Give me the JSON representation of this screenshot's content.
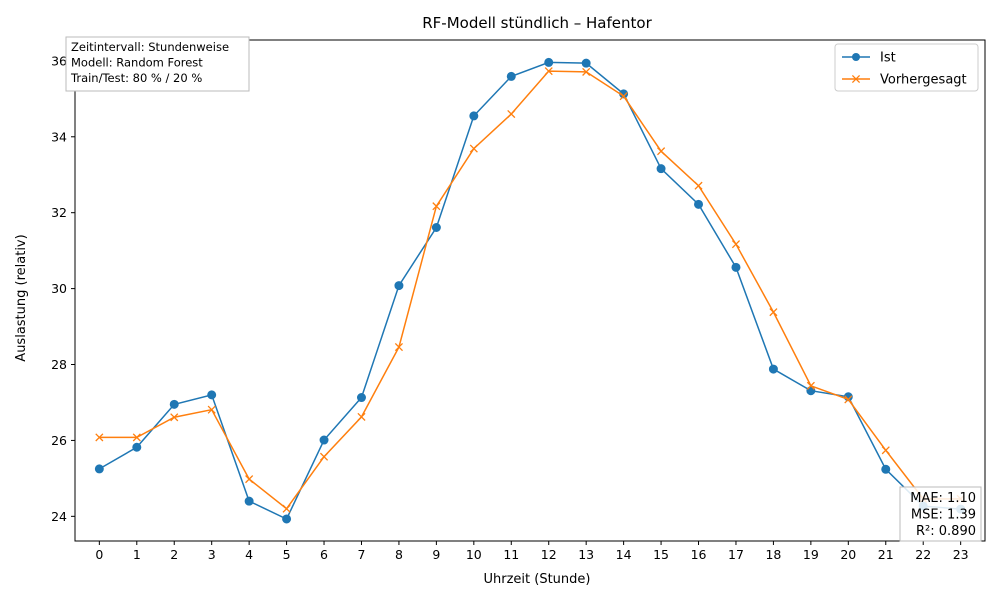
{
  "chart_data": {
    "type": "line",
    "title": "RF-Modell stündlich – Hafentor",
    "xlabel": "Uhrzeit (Stunde)",
    "ylabel": "Auslastung (relativ)",
    "x": [
      0,
      1,
      2,
      3,
      4,
      5,
      6,
      7,
      8,
      9,
      10,
      11,
      12,
      13,
      14,
      15,
      16,
      17,
      18,
      19,
      20,
      21,
      22,
      23
    ],
    "x_tick_labels": [
      "0",
      "1",
      "2",
      "3",
      "4",
      "5",
      "6",
      "7",
      "8",
      "9",
      "10",
      "11",
      "12",
      "13",
      "14",
      "15",
      "16",
      "17",
      "18",
      "19",
      "20",
      "21",
      "22",
      "23"
    ],
    "y_tick_values": [
      24,
      26,
      28,
      30,
      32,
      34,
      36
    ],
    "y_tick_labels": [
      "24",
      "26",
      "28",
      "30",
      "32",
      "34",
      "36"
    ],
    "xlim": [
      -0.65,
      23.65
    ],
    "ylim": [
      23.35,
      36.55
    ],
    "grid": false,
    "legend_position": "top-right",
    "series": [
      {
        "name": "Ist",
        "color": "#1f77b4",
        "marker": "circle",
        "values": [
          25.25,
          25.82,
          26.95,
          27.2,
          24.4,
          23.93,
          26.01,
          27.13,
          30.08,
          31.61,
          34.55,
          35.59,
          35.96,
          35.94,
          35.13,
          33.16,
          32.22,
          30.56,
          27.88,
          27.31,
          27.15,
          25.24,
          24.27,
          24.19
        ]
      },
      {
        "name": "Vorhergesagt",
        "color": "#ff7f0e",
        "marker": "x",
        "values": [
          26.08,
          26.08,
          26.61,
          26.81,
          24.98,
          24.2,
          25.57,
          26.62,
          28.46,
          32.17,
          33.69,
          34.6,
          35.73,
          35.71,
          35.07,
          33.62,
          32.71,
          31.17,
          29.38,
          27.44,
          27.08,
          25.74,
          24.46,
          24.46
        ]
      }
    ],
    "annotations": {
      "info_box": [
        "Zeitintervall: Stundenweise",
        "Modell: Random Forest",
        "Train/Test: 80 % / 20 %"
      ],
      "metrics_box": [
        "MAE: 1.10",
        "MSE: 1.39",
        "R²: 0.890"
      ]
    }
  }
}
